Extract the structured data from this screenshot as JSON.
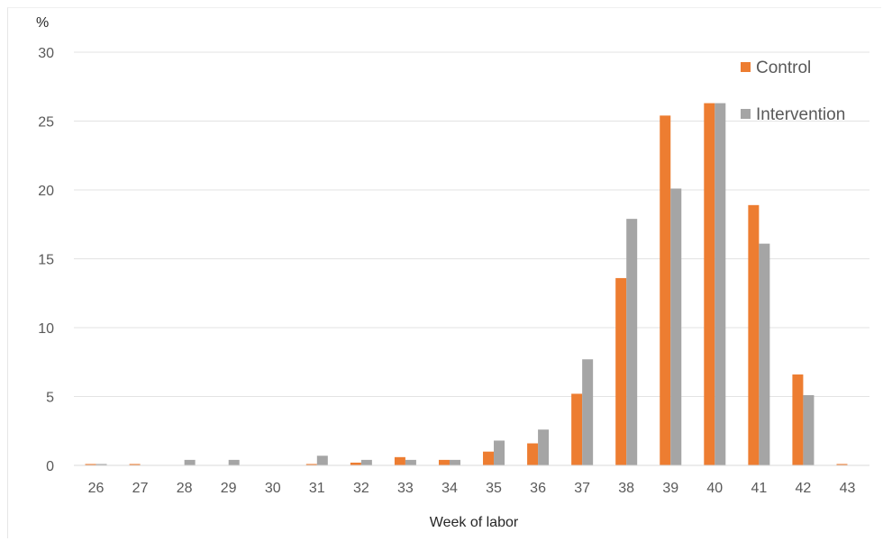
{
  "chart_data": {
    "type": "bar",
    "title": "",
    "ylabel": "%",
    "xlabel": "Week of labor",
    "ylim": [
      0,
      30
    ],
    "yticks": [
      0,
      5,
      10,
      15,
      20,
      25,
      30
    ],
    "categories": [
      "26",
      "27",
      "28",
      "29",
      "30",
      "31",
      "32",
      "33",
      "34",
      "35",
      "36",
      "37",
      "38",
      "39",
      "40",
      "41",
      "42",
      "43"
    ],
    "series": [
      {
        "name": "Control",
        "color": "#ED7D31",
        "values": [
          0.1,
          0.1,
          0,
          0,
          0,
          0.1,
          0.2,
          0.6,
          0.4,
          1.0,
          1.6,
          5.2,
          13.6,
          25.4,
          26.3,
          18.9,
          6.6,
          0.1
        ]
      },
      {
        "name": "Intervention",
        "color": "#A5A5A5",
        "values": [
          0.1,
          0,
          0.4,
          0.4,
          0,
          0.7,
          0.4,
          0.4,
          0.4,
          1.8,
          2.6,
          7.7,
          17.9,
          20.1,
          26.3,
          16.1,
          5.1,
          0
        ]
      }
    ],
    "grid": true,
    "legend_position": "top-right"
  }
}
